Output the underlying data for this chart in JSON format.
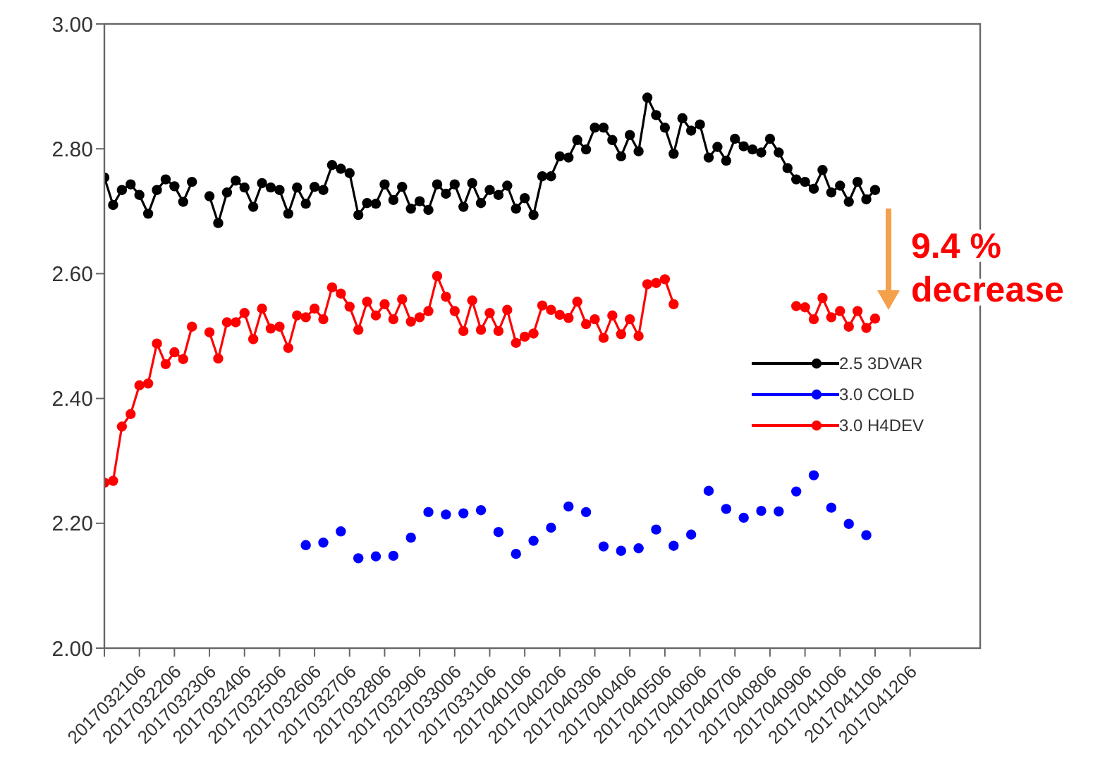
{
  "chart_data": {
    "type": "line",
    "marker": "circle",
    "line_style": "solid",
    "grid": false,
    "legend": "right",
    "x": [
      "2017-03-20T06:00",
      "2017-03-20T12:00",
      "2017-03-20T18:00",
      "2017-03-21T00:00",
      "2017-03-21T06:00",
      "2017-03-21T12:00",
      "2017-03-21T18:00",
      "2017-03-22T00:00",
      "2017-03-22T06:00",
      "2017-03-22T12:00",
      "2017-03-22T18:00",
      "2017-03-23T00:00",
      "2017-03-23T06:00",
      "2017-03-23T12:00",
      "2017-03-23T18:00",
      "2017-03-24T00:00",
      "2017-03-24T06:00",
      "2017-03-24T12:00",
      "2017-03-24T18:00",
      "2017-03-25T00:00",
      "2017-03-25T06:00",
      "2017-03-25T12:00",
      "2017-03-25T18:00",
      "2017-03-26T00:00",
      "2017-03-26T06:00",
      "2017-03-26T12:00",
      "2017-03-26T18:00",
      "2017-03-27T00:00",
      "2017-03-27T06:00",
      "2017-03-27T12:00",
      "2017-03-27T18:00",
      "2017-03-28T00:00",
      "2017-03-28T06:00",
      "2017-03-28T12:00",
      "2017-03-28T18:00",
      "2017-03-29T00:00",
      "2017-03-29T06:00",
      "2017-03-29T12:00",
      "2017-03-29T18:00",
      "2017-03-30T00:00",
      "2017-03-30T06:00",
      "2017-03-30T12:00",
      "2017-03-30T18:00",
      "2017-03-31T00:00",
      "2017-03-31T06:00",
      "2017-03-31T12:00",
      "2017-03-31T18:00",
      "2017-04-01T00:00",
      "2017-04-01T06:00",
      "2017-04-01T12:00",
      "2017-04-01T18:00",
      "2017-04-02T00:00",
      "2017-04-02T06:00",
      "2017-04-02T12:00",
      "2017-04-02T18:00",
      "2017-04-03T00:00",
      "2017-04-03T06:00",
      "2017-04-03T12:00",
      "2017-04-03T18:00",
      "2017-04-04T00:00",
      "2017-04-04T06:00",
      "2017-04-04T12:00",
      "2017-04-04T18:00",
      "2017-04-05T00:00",
      "2017-04-05T06:00",
      "2017-04-05T12:00",
      "2017-04-05T18:00",
      "2017-04-06T00:00",
      "2017-04-06T06:00",
      "2017-04-06T12:00",
      "2017-04-06T18:00",
      "2017-04-07T00:00",
      "2017-04-07T06:00",
      "2017-04-07T12:00",
      "2017-04-07T18:00",
      "2017-04-08T00:00",
      "2017-04-08T06:00",
      "2017-04-08T12:00",
      "2017-04-08T18:00",
      "2017-04-09T00:00",
      "2017-04-09T06:00",
      "2017-04-09T12:00",
      "2017-04-09T18:00",
      "2017-04-10T00:00",
      "2017-04-10T06:00",
      "2017-04-10T12:00",
      "2017-04-10T18:00",
      "2017-04-11T00:00",
      "2017-04-11T06:00"
    ],
    "series": [
      {
        "name": "2.5 3DVAR",
        "color": "#000000",
        "values": [
          2.754,
          2.71,
          2.734,
          2.743,
          2.726,
          2.696,
          2.734,
          2.751,
          2.74,
          2.715,
          2.747,
          null,
          2.724,
          2.681,
          2.73,
          2.749,
          2.738,
          2.707,
          2.745,
          2.738,
          2.734,
          2.696,
          2.738,
          2.712,
          2.739,
          2.734,
          2.774,
          2.768,
          2.761,
          2.694,
          2.713,
          2.712,
          2.743,
          2.718,
          2.739,
          2.704,
          2.716,
          2.702,
          2.743,
          2.728,
          2.743,
          2.707,
          2.745,
          2.713,
          2.734,
          2.726,
          2.741,
          2.704,
          2.721,
          2.694,
          2.756,
          2.756,
          2.788,
          2.786,
          2.814,
          2.799,
          2.834,
          2.834,
          2.814,
          2.788,
          2.822,
          2.796,
          2.882,
          2.854,
          2.834,
          2.792,
          2.849,
          2.829,
          2.839,
          2.786,
          2.803,
          2.781,
          2.816,
          2.804,
          2.799,
          2.794,
          2.816,
          2.794,
          2.769,
          2.751,
          2.747,
          2.736,
          2.766,
          2.73,
          2.741,
          2.715,
          2.747,
          2.719,
          2.734
        ]
      },
      {
        "name": "3.0 COLD",
        "color": "#0000ff",
        "type": "scatter",
        "x": [
          "2017-03-26T00:00",
          "2017-03-26T12:00",
          "2017-03-27T00:00",
          "2017-03-27T12:00",
          "2017-03-28T00:00",
          "2017-03-28T12:00",
          "2017-03-29T00:00",
          "2017-03-29T12:00",
          "2017-03-30T00:00",
          "2017-03-30T12:00",
          "2017-03-31T00:00",
          "2017-03-31T12:00",
          "2017-04-01T00:00",
          "2017-04-01T12:00",
          "2017-04-02T00:00",
          "2017-04-02T12:00",
          "2017-04-03T00:00",
          "2017-04-03T12:00",
          "2017-04-04T00:00",
          "2017-04-04T12:00",
          "2017-04-05T00:00",
          "2017-04-05T12:00",
          "2017-04-06T00:00",
          "2017-04-06T12:00",
          "2017-04-07T00:00",
          "2017-04-07T12:00",
          "2017-04-08T00:00",
          "2017-04-08T12:00",
          "2017-04-09T00:00",
          "2017-04-09T12:00",
          "2017-04-10T00:00",
          "2017-04-10T12:00",
          "2017-04-11T00:00"
        ],
        "values": [
          2.165,
          2.169,
          2.187,
          2.144,
          2.147,
          2.148,
          2.177,
          2.218,
          2.214,
          2.216,
          2.221,
          2.186,
          2.151,
          2.172,
          2.193,
          2.227,
          2.218,
          2.163,
          2.156,
          2.16,
          2.19,
          2.164,
          2.182,
          2.252,
          2.223,
          2.209,
          2.22,
          2.219,
          2.251,
          2.277,
          2.225,
          2.199,
          2.181
        ]
      },
      {
        "name": "3.0 H4DEV",
        "color": "#ff0000",
        "values": [
          2.265,
          2.268,
          2.355,
          2.375,
          2.421,
          2.424,
          2.488,
          2.455,
          2.474,
          2.463,
          2.515,
          null,
          2.506,
          2.464,
          2.522,
          2.522,
          2.537,
          2.495,
          2.544,
          2.512,
          2.515,
          2.481,
          2.533,
          2.53,
          2.544,
          2.527,
          2.578,
          2.568,
          2.547,
          2.51,
          2.555,
          2.533,
          2.551,
          2.527,
          2.559,
          2.523,
          2.53,
          2.54,
          2.596,
          2.563,
          2.54,
          2.508,
          2.557,
          2.51,
          2.537,
          2.508,
          2.542,
          2.489,
          2.499,
          2.504,
          2.549,
          2.542,
          2.534,
          2.529,
          2.555,
          2.519,
          2.527,
          2.497,
          2.533,
          2.503,
          2.527,
          2.5,
          2.583,
          2.585,
          2.591,
          2.551,
          null,
          null,
          null,
          null,
          null,
          null,
          null,
          null,
          null,
          null,
          null,
          null,
          null,
          2.548,
          2.546,
          2.527,
          2.561,
          2.53,
          2.54,
          2.515,
          2.54,
          2.513,
          2.528
        ]
      }
    ],
    "xlim": [
      "2017-03-20T06:00",
      "2017-04-14T06:00"
    ],
    "xticks": [
      {
        "value": "2017-03-20T06:00",
        "label": null
      },
      {
        "value": "2017-03-21T06:00",
        "label": "2017032106"
      },
      {
        "value": "2017-03-22T06:00",
        "label": "2017032206"
      },
      {
        "value": "2017-03-23T06:00",
        "label": "2017032306"
      },
      {
        "value": "2017-03-24T06:00",
        "label": "2017032406"
      },
      {
        "value": "2017-03-25T06:00",
        "label": "2017032506"
      },
      {
        "value": "2017-03-26T06:00",
        "label": "2017032606"
      },
      {
        "value": "2017-03-27T06:00",
        "label": "2017032706"
      },
      {
        "value": "2017-03-28T06:00",
        "label": "2017032806"
      },
      {
        "value": "2017-03-29T06:00",
        "label": "2017032906"
      },
      {
        "value": "2017-03-30T06:00",
        "label": "2017033006"
      },
      {
        "value": "2017-03-31T06:00",
        "label": "2017033106"
      },
      {
        "value": "2017-04-01T06:00",
        "label": "2017040106"
      },
      {
        "value": "2017-04-02T06:00",
        "label": "2017040206"
      },
      {
        "value": "2017-04-03T06:00",
        "label": "2017040306"
      },
      {
        "value": "2017-04-04T06:00",
        "label": "2017040406"
      },
      {
        "value": "2017-04-05T06:00",
        "label": "2017040506"
      },
      {
        "value": "2017-04-06T06:00",
        "label": "2017040606"
      },
      {
        "value": "2017-04-07T06:00",
        "label": "2017040706"
      },
      {
        "value": "2017-04-08T06:00",
        "label": "2017040806"
      },
      {
        "value": "2017-04-09T06:00",
        "label": "2017040906"
      },
      {
        "value": "2017-04-10T06:00",
        "label": "2017041006"
      },
      {
        "value": "2017-04-11T06:00",
        "label": "2017041106"
      },
      {
        "value": "2017-04-12T06:00",
        "label": "2017041206"
      }
    ],
    "ylim": [
      2.0,
      3.0
    ],
    "yticks": [
      {
        "value": 2.0,
        "label": "2.00"
      },
      {
        "value": 2.2,
        "label": "2.20"
      },
      {
        "value": 2.4,
        "label": "2.40"
      },
      {
        "value": 2.6,
        "label": "2.60"
      },
      {
        "value": 2.8,
        "label": "2.80"
      },
      {
        "value": 3.0,
        "label": "3.00"
      }
    ],
    "annotations": [
      "9.4 %\ndecrease"
    ]
  }
}
